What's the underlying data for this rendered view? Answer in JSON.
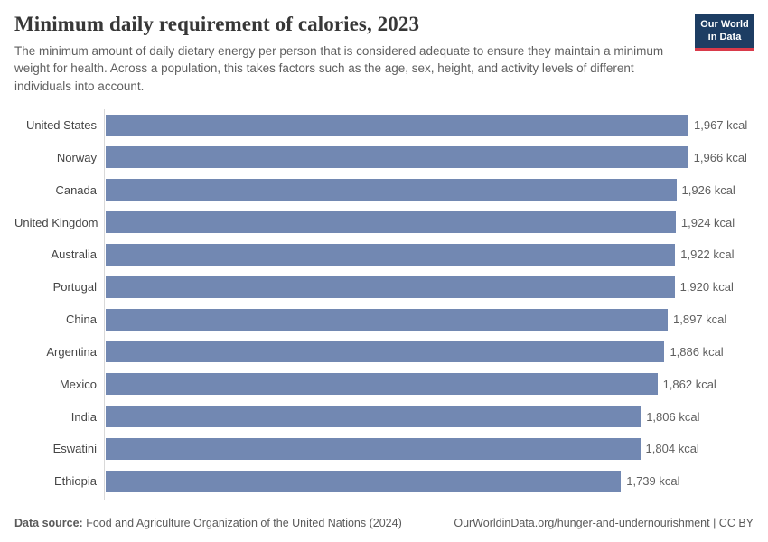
{
  "header": {
    "title": "Minimum daily requirement of calories, 2023",
    "subtitle": "The minimum amount of daily dietary energy per person that is considered adequate to ensure they maintain a minimum weight for health. Across a population, this takes factors such as the age, sex, height, and activity levels of different individuals into account.",
    "logo": {
      "line1": "Our World",
      "line2": "in Data"
    }
  },
  "chart_data": {
    "type": "bar",
    "orientation": "horizontal",
    "title": "Minimum daily requirement of calories, 2023",
    "categories": [
      "United States",
      "Norway",
      "Canada",
      "United Kingdom",
      "Australia",
      "Portugal",
      "China",
      "Argentina",
      "Mexico",
      "India",
      "Eswatini",
      "Ethiopia"
    ],
    "values": [
      1967,
      1966,
      1926,
      1924,
      1922,
      1920,
      1897,
      1886,
      1862,
      1806,
      1804,
      1739
    ],
    "value_labels": [
      "1,967 kcal",
      "1,966 kcal",
      "1,926 kcal",
      "1,924 kcal",
      "1,922 kcal",
      "1,920 kcal",
      "1,897 kcal",
      "1,886 kcal",
      "1,862 kcal",
      "1,806 kcal",
      "1,804 kcal",
      "1,739 kcal"
    ],
    "unit": "kcal",
    "xlim": [
      0,
      1967
    ],
    "grid": false,
    "legend": "none",
    "bar_color": "#7288b2"
  },
  "footer": {
    "source_label": "Data source:",
    "source_text": "Food and Agriculture Organization of the United Nations (2024)",
    "attribution": "OurWorldinData.org/hunger-and-undernourishment | CC BY"
  },
  "colors": {
    "bar": "#7288b2",
    "logo_background": "#1d3d63",
    "logo_accent_red": "#d93a4a",
    "axis_line": "#d9d9d9",
    "title_text": "#373737",
    "subtitle_text": "#5f5f5f"
  }
}
